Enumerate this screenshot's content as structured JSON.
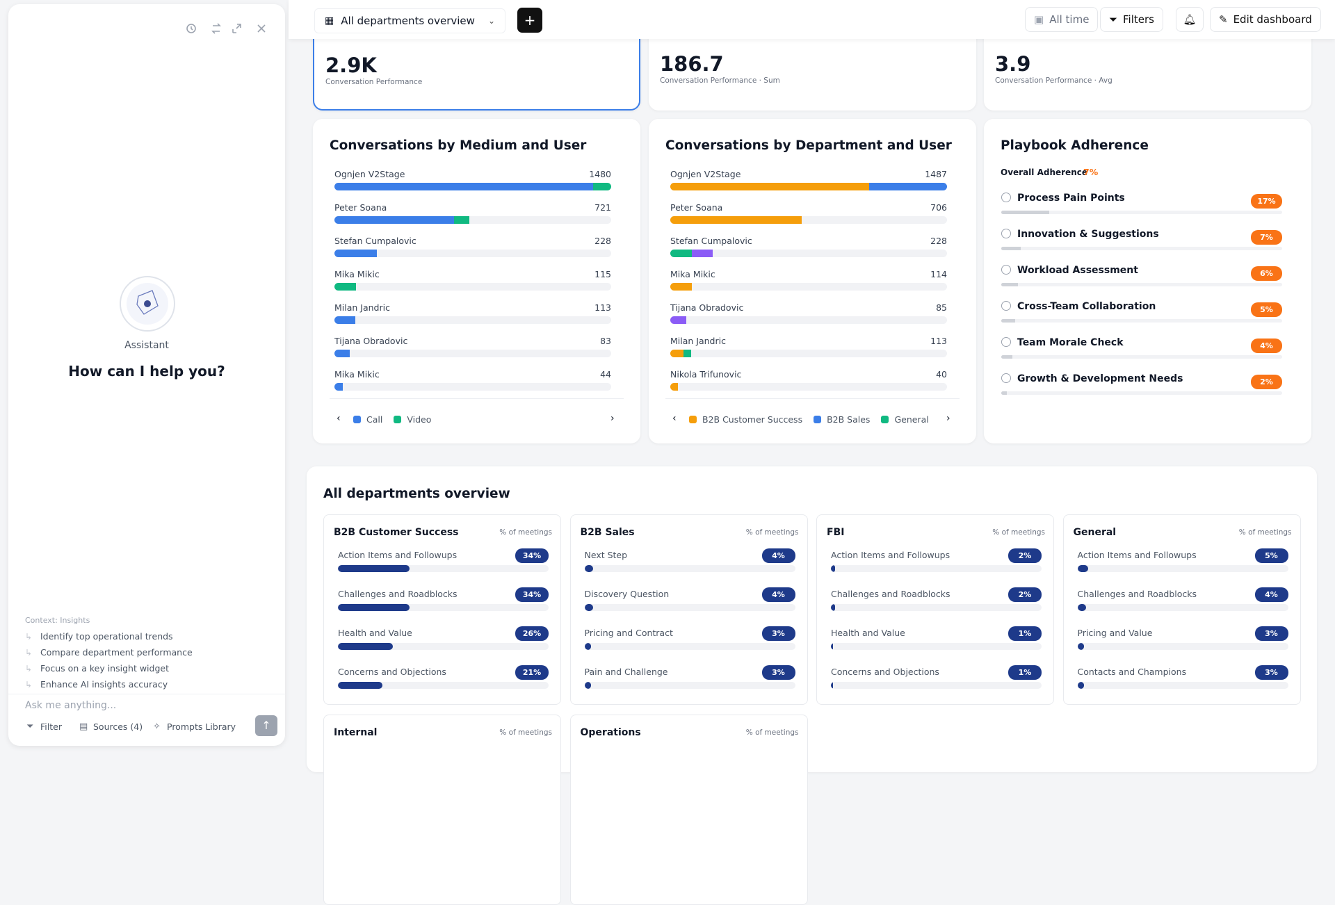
{
  "sidebar": {
    "assistant_label": "Assistant",
    "greeting": "How can I help you?",
    "context_label": "Context: Insights",
    "suggestions": [
      "Identify top operational trends",
      "Compare department performance",
      "Focus on a key insight widget",
      "Enhance AI insights accuracy"
    ],
    "input_placeholder": "Ask me anything...",
    "buttons": [
      "Filter",
      "Sources (4)",
      "Prompts Library"
    ]
  },
  "toolbar": {
    "dashboard_select": "All departments overview",
    "time_filter": "All time",
    "filters": "Filters",
    "edit": "Edit dashboard"
  },
  "kpis": [
    {
      "value": "2.9K",
      "label": "Conversation Performance"
    },
    {
      "value": "186.7",
      "label": "Conversation Performance · Sum"
    },
    {
      "value": "3.9",
      "label": "Conversation Performance · Avg"
    }
  ],
  "chart_data": [
    {
      "type": "bar",
      "orientation": "horizontal",
      "stacked": true,
      "title": "Conversations by Medium and User",
      "categories": [
        "Ognjen V2Stage",
        "Peter Soana",
        "Stefan Cumpalovic",
        "Mika Mikic",
        "Milan Jandric",
        "Tijana Obradovic",
        "Mika Mikic"
      ],
      "totals": [
        1480,
        721,
        228,
        115,
        113,
        83,
        44
      ],
      "series": [
        {
          "name": "Call",
          "color": "#3b7ee8",
          "values": [
            1384,
            639,
            228,
            0,
            113,
            83,
            44
          ]
        },
        {
          "name": "Video",
          "color": "#10b981",
          "values": [
            96,
            82,
            0,
            115,
            0,
            0,
            0
          ]
        }
      ]
    },
    {
      "type": "bar",
      "orientation": "horizontal",
      "stacked": true,
      "title": "Conversations by Department and User",
      "categories": [
        "Ognjen V2Stage",
        "Peter Soana",
        "Stefan Cumpalovic",
        "Mika Mikic",
        "Tijana Obradovic",
        "Milan Jandric",
        "Nikola Trifunovic"
      ],
      "totals": [
        1487,
        706,
        228,
        114,
        85,
        113,
        40
      ],
      "series": [
        {
          "name": "B2B Customer Success",
          "color": "#f59e0b",
          "values": [
            1069,
            706,
            0,
            114,
            0,
            70,
            40
          ]
        },
        {
          "name": "B2B Sales",
          "color": "#3b7ee8",
          "values": [
            418,
            0,
            0,
            0,
            0,
            0,
            0
          ]
        },
        {
          "name": "General",
          "color": "#10b981",
          "values": [
            0,
            0,
            116,
            0,
            0,
            43,
            0
          ]
        },
        {
          "name": null,
          "color": "#8b5cf6",
          "values": [
            0,
            0,
            112,
            0,
            85,
            0,
            0
          ]
        }
      ]
    }
  ],
  "playbook": {
    "title": "Playbook Adherence",
    "overall_label": "Overall Adherence",
    "overall_value": 7,
    "overall_value_label": "7%",
    "items": [
      "Process Pain Points",
      "Innovation & Suggestions",
      "Workload Assessment",
      "Cross-Team Collaboration",
      "Team Morale Check",
      "Growth & Development Needs"
    ],
    "values": [
      17,
      7,
      6,
      5,
      4,
      2
    ],
    "value_labels": [
      "17%",
      "7%",
      "6%",
      "5%",
      "4%",
      "2%"
    ]
  },
  "overview": {
    "title": "All departments overview",
    "departments": [
      {
        "name": "B2B Customer Success",
        "subtitle": "% of meetings",
        "items": [
          "Action Items and Followups",
          "Challenges and Roadblocks",
          "Health and Value",
          "Concerns and Objections"
        ],
        "values": [
          34,
          34,
          26,
          21
        ],
        "value_labels": [
          "34%",
          "34%",
          "26%",
          "21%"
        ]
      },
      {
        "name": "B2B Sales",
        "subtitle": "% of meetings",
        "items": [
          "Next Step",
          "Discovery Question",
          "Pricing and Contract",
          "Pain and Challenge"
        ],
        "values": [
          4,
          4,
          3,
          3
        ],
        "value_labels": [
          "4%",
          "4%",
          "3%",
          "3%"
        ]
      },
      {
        "name": "FBI",
        "subtitle": "% of meetings",
        "items": [
          "Action Items and Followups",
          "Challenges and Roadblocks",
          "Health and Value",
          "Concerns and Objections"
        ],
        "values": [
          2,
          2,
          1,
          1
        ],
        "value_labels": [
          "2%",
          "2%",
          "1%",
          "1%"
        ]
      },
      {
        "name": "General",
        "subtitle": "% of meetings",
        "items": [
          "Action Items and Followups",
          "Challenges and Roadblocks",
          "Pricing and Value",
          "Contacts and Champions"
        ],
        "values": [
          5,
          4,
          3,
          3
        ],
        "value_labels": [
          "5%",
          "4%",
          "3%",
          "3%"
        ]
      },
      {
        "name": "Internal",
        "subtitle": "% of meetings",
        "items": [],
        "values": [],
        "value_labels": []
      },
      {
        "name": "Operations",
        "subtitle": "% of meetings",
        "items": [],
        "values": [],
        "value_labels": []
      }
    ]
  }
}
